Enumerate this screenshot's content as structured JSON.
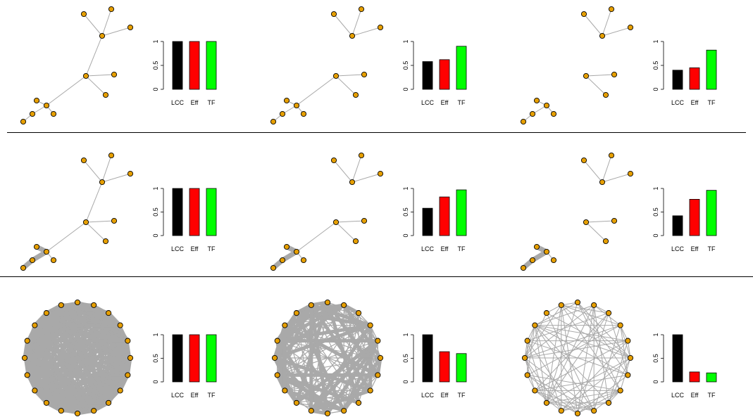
{
  "colors": {
    "node_fill": "#E69F00",
    "edge": "#A9A9A9",
    "bar_lcc": "#000000",
    "bar_eff": "#FF0000",
    "bar_tf": "#00FF00"
  },
  "chart_data": [
    {
      "type": "bar",
      "row": 1,
      "col": 1,
      "categories": [
        "LCC",
        "Eff",
        "TF"
      ],
      "values": [
        1.0,
        1.0,
        1.0
      ],
      "ylim": [
        0,
        1
      ],
      "yticks": [
        "0",
        "0.5",
        "1"
      ],
      "network": "tree",
      "removed": []
    },
    {
      "type": "bar",
      "row": 1,
      "col": 2,
      "categories": [
        "LCC",
        "Eff",
        "TF"
      ],
      "values": [
        0.58,
        0.62,
        0.9
      ],
      "ylim": [
        0,
        1
      ],
      "yticks": [
        "0",
        "0.5",
        "1"
      ],
      "network": "tree",
      "removed": [
        [
          2,
          5
        ]
      ]
    },
    {
      "type": "bar",
      "row": 1,
      "col": 3,
      "categories": [
        "LCC",
        "Eff",
        "TF"
      ],
      "values": [
        0.4,
        0.45,
        0.82
      ],
      "ylim": [
        0,
        1
      ],
      "yticks": [
        "0",
        "0.5",
        "1"
      ],
      "network": "tree",
      "removed": [
        [
          2,
          5
        ],
        [
          1,
          2
        ]
      ]
    },
    {
      "type": "bar",
      "row": 2,
      "col": 1,
      "categories": [
        "LCC",
        "Eff",
        "TF"
      ],
      "values": [
        1.0,
        1.0,
        1.0
      ],
      "ylim": [
        0,
        1
      ],
      "yticks": [
        "0",
        "0.5",
        "1"
      ],
      "network": "tree-weighted",
      "removed": []
    },
    {
      "type": "bar",
      "row": 2,
      "col": 2,
      "categories": [
        "LCC",
        "Eff",
        "TF"
      ],
      "values": [
        0.58,
        0.82,
        0.97
      ],
      "ylim": [
        0,
        1
      ],
      "yticks": [
        "0",
        "0.5",
        "1"
      ],
      "network": "tree-weighted",
      "removed": [
        [
          2,
          5
        ]
      ]
    },
    {
      "type": "bar",
      "row": 2,
      "col": 3,
      "categories": [
        "LCC",
        "Eff",
        "TF"
      ],
      "values": [
        0.42,
        0.77,
        0.96
      ],
      "ylim": [
        0,
        1
      ],
      "yticks": [
        "0",
        "0.5",
        "1"
      ],
      "network": "tree-weighted",
      "removed": [
        [
          2,
          5
        ],
        [
          1,
          2
        ]
      ]
    },
    {
      "type": "bar",
      "row": 3,
      "col": 1,
      "categories": [
        "LCC",
        "Eff",
        "TF"
      ],
      "values": [
        1.0,
        1.0,
        1.0
      ],
      "ylim": [
        0,
        1
      ],
      "yticks": [
        "0",
        "0.5",
        "1"
      ],
      "network": "circle-dense"
    },
    {
      "type": "bar",
      "row": 3,
      "col": 2,
      "categories": [
        "LCC",
        "Eff",
        "TF"
      ],
      "values": [
        1.0,
        0.64,
        0.6
      ],
      "ylim": [
        0,
        1
      ],
      "yticks": [
        "0",
        "0.5",
        "1"
      ],
      "network": "circle-fan"
    },
    {
      "type": "bar",
      "row": 3,
      "col": 3,
      "categories": [
        "LCC",
        "Eff",
        "TF"
      ],
      "values": [
        1.0,
        0.21,
        0.19
      ],
      "ylim": [
        0,
        1
      ],
      "yticks": [
        "0",
        "0.5",
        "1"
      ],
      "network": "circle-sparse"
    }
  ]
}
